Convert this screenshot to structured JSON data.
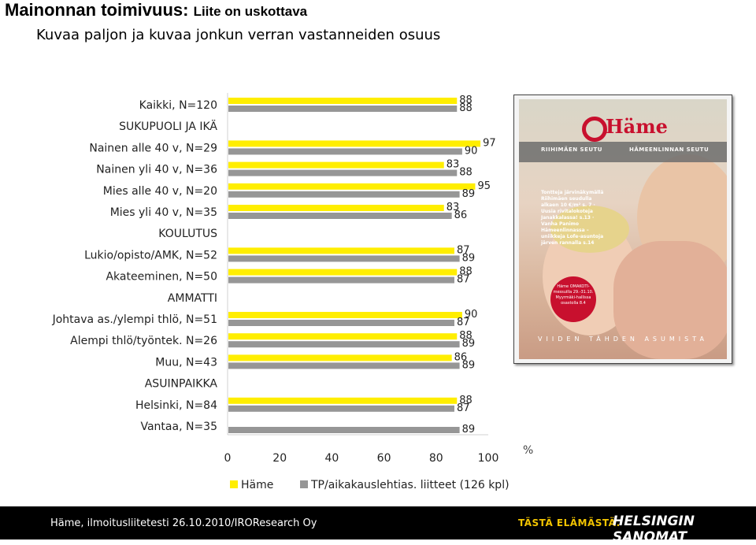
{
  "header": {
    "title_main": "Mainonnan toimivuus:",
    "title_sub": "Liite on uskottava",
    "subtitle": "Kuvaa paljon ja kuvaa jonkun verran vastanneiden osuus"
  },
  "footer": {
    "source": "Häme, ilmoitusliitetesti 26.10.2010/IROResearch Oy",
    "slogan": "TÄSTÄ ELÄMÄSTÄ.",
    "brand": "HELSINGIN SANOMAT"
  },
  "cover": {
    "logo": "Häme",
    "region_left": "RIIHIMÄEN SEUTU",
    "region_right": "HÄMEENLINNAN SEUTU",
    "blurb": "Tontteja järvinäkymällä Riihimäen seudulla alkaen 10 €/m² s. 7 · Uusia rivitalokoteja Janakkalassa! s.13 · Vanha Panimo Hämeenlinnassa – uniikkeja Lofe-asuntoja järven rannalla s.14",
    "badge": "Häme OMAKOTI-messuilla 29.-31.10. Myyrmäki-hallissa osastolla 8.4",
    "bottom": "VIIDEN TÄHDEN ASUMISTA"
  },
  "chart_data": {
    "type": "bar",
    "orientation": "horizontal",
    "unit_label": "%",
    "xlim": [
      0,
      100
    ],
    "xticks": [
      0,
      20,
      40,
      60,
      80,
      100
    ],
    "grid": false,
    "legend_position": "bottom",
    "series": [
      {
        "name": "Häme",
        "color": "#ffee00"
      },
      {
        "name": "TP/aikakauslehtias. liitteet (126 kpl)",
        "color": "#969696"
      }
    ],
    "rows": [
      {
        "label": "Kaikki, N=120",
        "heading": false,
        "values": [
          88,
          88
        ]
      },
      {
        "label": "SUKUPUOLI JA IKÄ",
        "heading": true,
        "values": []
      },
      {
        "label": "Nainen alle 40 v, N=29",
        "heading": false,
        "values": [
          97,
          90
        ]
      },
      {
        "label": "Nainen yli 40 v, N=36",
        "heading": false,
        "values": [
          83,
          88
        ]
      },
      {
        "label": "Mies alle 40 v, N=20",
        "heading": false,
        "values": [
          95,
          89
        ]
      },
      {
        "label": "Mies yli 40 v, N=35",
        "heading": false,
        "values": [
          83,
          86
        ]
      },
      {
        "label": "KOULUTUS",
        "heading": true,
        "values": []
      },
      {
        "label": "Lukio/opisto/AMK, N=52",
        "heading": false,
        "values": [
          87,
          89
        ]
      },
      {
        "label": "Akateeminen, N=50",
        "heading": false,
        "values": [
          88,
          87
        ]
      },
      {
        "label": "AMMATTI",
        "heading": true,
        "values": []
      },
      {
        "label": "Johtava as./ylempi thlö, N=51",
        "heading": false,
        "values": [
          90,
          87
        ]
      },
      {
        "label": "Alempi thlö/työntek. N=26",
        "heading": false,
        "values": [
          88,
          89
        ]
      },
      {
        "label": "Muu, N=43",
        "heading": false,
        "values": [
          86,
          89
        ]
      },
      {
        "label": "ASUINPAIKKA",
        "heading": true,
        "values": []
      },
      {
        "label": "Helsinki, N=84",
        "heading": false,
        "values": [
          88,
          87
        ]
      },
      {
        "label": "Vantaa, N=35",
        "heading": false,
        "values": [
          null,
          89
        ]
      }
    ]
  }
}
